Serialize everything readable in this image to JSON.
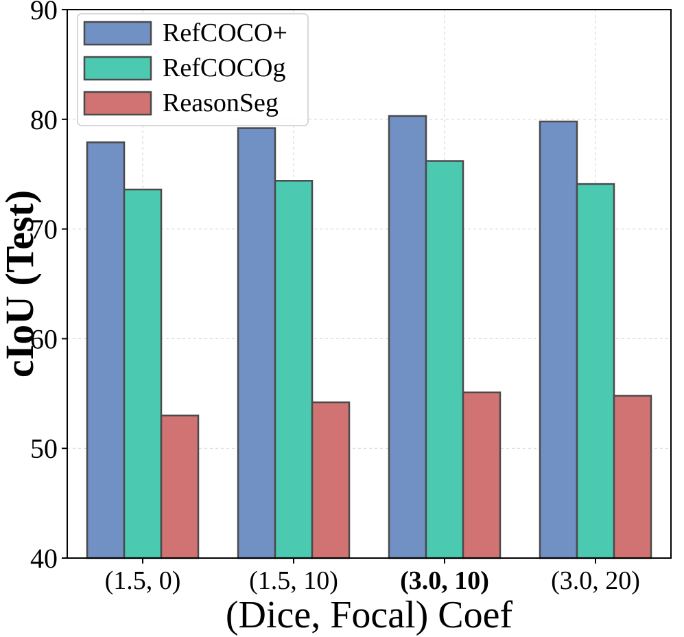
{
  "chart_data": {
    "type": "bar",
    "title": "",
    "xlabel": "(Dice, Focal) Coef",
    "ylabel": "cIoU (Test)",
    "ylim": [
      40,
      90
    ],
    "yticks": [
      "40",
      "50",
      "60",
      "70",
      "80",
      "90"
    ],
    "grid": true,
    "legend_position": "top-left",
    "categories": [
      "(1.5, 0)",
      "(1.5, 10)",
      "(3.0, 10)",
      "(3.0, 20)"
    ],
    "highlighted_category": "(3.0, 10)",
    "series": [
      {
        "name": "RefCOCO+",
        "color": "#7190c4",
        "values": [
          77.9,
          79.2,
          80.3,
          79.8
        ]
      },
      {
        "name": "RefCOCOg",
        "color": "#4ccab1",
        "values": [
          73.6,
          74.4,
          76.2,
          74.1
        ]
      },
      {
        "name": "ReasonSeg",
        "color": "#d17373",
        "values": [
          53.0,
          54.2,
          55.1,
          54.8
        ]
      }
    ]
  }
}
